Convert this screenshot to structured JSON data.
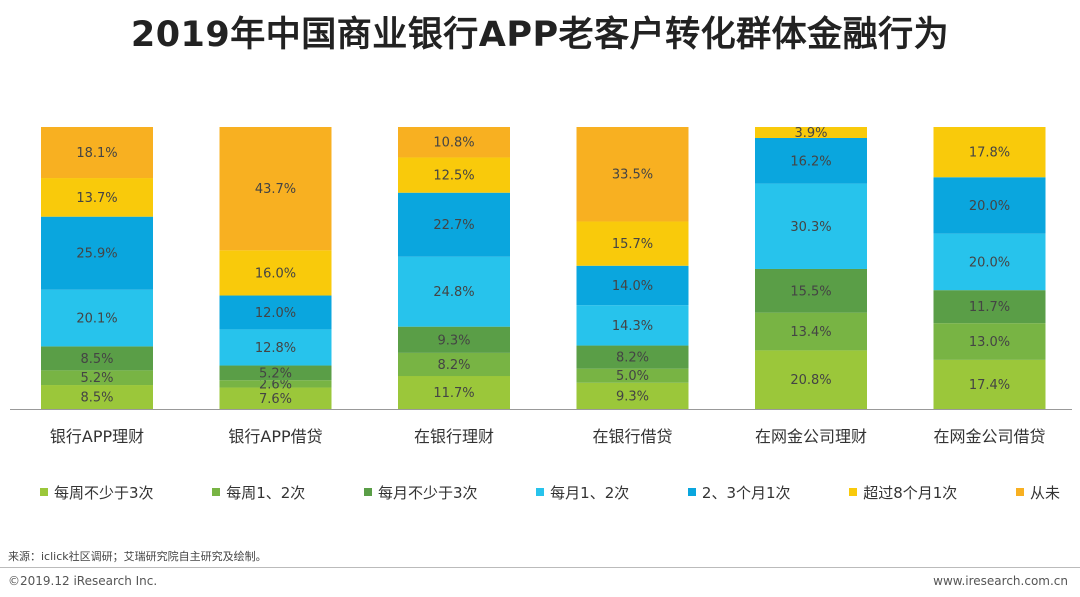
{
  "title": "2019年中国商业银行APP老客户转化群体金融行为",
  "source": "来源：iclick社区调研；艾瑞研究院自主研究及绘制。",
  "footer": {
    "copyright": "©2019.12 iResearch Inc.",
    "website": "www.iresearch.com.cn"
  },
  "chart_data": {
    "type": "bar",
    "stacked": true,
    "normalized_percent": true,
    "title": "2019年中国商业银行APP老客户转化群体金融行为",
    "categories": [
      "银行APP理财",
      "银行APP借贷",
      "在银行理财",
      "在银行借贷",
      "在网金公司理财",
      "在网金公司借贷"
    ],
    "series": [
      {
        "name": "每周不少于3次",
        "color": "#9bc73a",
        "values": [
          8.5,
          7.6,
          11.7,
          9.3,
          20.8,
          17.4
        ],
        "labels": [
          "8.5%",
          "7.6%",
          "11.7%",
          "9.3%",
          "20.8%",
          "17.4%"
        ]
      },
      {
        "name": "每周1、2次",
        "color": "#78b444",
        "values": [
          5.2,
          2.6,
          8.2,
          5.0,
          13.4,
          13.0
        ],
        "labels": [
          "5.2%",
          "2.6%",
          "8.2%",
          "5.0%",
          "13.4%",
          "13.0%"
        ]
      },
      {
        "name": "每月不少于3次",
        "color": "#5a9e47",
        "values": [
          8.5,
          5.2,
          9.3,
          8.2,
          15.5,
          11.7
        ],
        "labels": [
          "8.5%",
          "5.2%",
          "9.3%",
          "8.2%",
          "15.5%",
          "11.7%"
        ]
      },
      {
        "name": "每月1、2次",
        "color": "#27c3ec",
        "values": [
          20.1,
          12.8,
          24.8,
          14.3,
          30.3,
          20.0
        ],
        "labels": [
          "20.1%",
          "12.8%",
          "24.8%",
          "14.3%",
          "30.3%",
          "20.0%"
        ]
      },
      {
        "name": "2、3个月1次",
        "color": "#0aa6de",
        "values": [
          25.9,
          12.0,
          22.7,
          14.0,
          16.2,
          20.0
        ],
        "labels": [
          "25.9%",
          "12.0%",
          "22.7%",
          "14.0%",
          "16.2%",
          "20.0%"
        ]
      },
      {
        "name": "超过8个月1次",
        "color": "#f9ca0b",
        "values": [
          13.7,
          16.0,
          12.5,
          15.7,
          3.9,
          17.8
        ],
        "labels": [
          "13.7%",
          "16.0%",
          "12.5%",
          "15.7%",
          "3.9%",
          "17.8%"
        ]
      },
      {
        "name": "从未",
        "color": "#f8b021",
        "values": [
          18.1,
          43.7,
          10.8,
          33.5,
          0,
          0
        ],
        "labels": [
          "18.1%",
          "43.7%",
          "10.8%",
          "33.5%",
          "",
          ""
        ]
      }
    ],
    "legend": "bottom",
    "grid": false,
    "ylim": [
      0,
      100
    ]
  }
}
